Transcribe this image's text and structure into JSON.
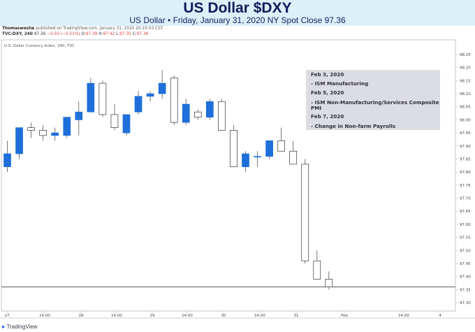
{
  "header": {
    "title": "US Dollar $DXY",
    "subtitle": "US Dollar • Friday, January 31, 2020 NY Spot Close 97.36"
  },
  "meta": {
    "author": "Thomaswestw",
    "published": "published on TradingView.com, January 31, 2020 20:15:03 CST"
  },
  "ohlc": {
    "symbol": "TVC:DXY, 240",
    "last": "97.36",
    "change": "−0.50 (−0.51%)",
    "o_label": "O:",
    "o": "97.39",
    "h_label": "H:",
    "h": "97.42",
    "l_label": "L:",
    "l": "97.35",
    "c_label": "C:",
    "c": "97.36"
  },
  "events": [
    "Feb 3, 2020",
    "- ISM Manufacturing",
    "Feb 5, 2020",
    "- ISM Non-Manufacturing/Services Composite",
    "PMI",
    "Feb 7, 2020",
    "- Change in Non-farm Payrolls"
  ],
  "branding": {
    "logo_text": "TradingView"
  },
  "colors": {
    "up": "#1e6fd9",
    "down": "#ffffff",
    "wick": "#555555",
    "header_bg": "#dcf0fa",
    "title": "#0d1e5b",
    "legend_bg": "#dcdde2"
  },
  "chart_data": {
    "type": "candlestick",
    "title": "U.S. Dollar Currency Index, 240, TVC",
    "x_ticks": [
      "27",
      "14:00",
      "28",
      "14:00",
      "29",
      "14:00",
      "30",
      "14:00",
      "31",
      "Feb",
      "14:00",
      "4"
    ],
    "y_ticks": [
      97.3,
      97.35,
      97.4,
      97.45,
      97.5,
      97.55,
      97.6,
      97.65,
      97.7,
      97.75,
      97.8,
      97.85,
      97.9,
      97.95,
      98.0,
      98.05,
      98.1,
      98.15,
      98.2,
      98.25
    ],
    "ylim": [
      97.275,
      98.275
    ],
    "close_line": 97.36,
    "candles": [
      {
        "o": 97.82,
        "h": 97.92,
        "l": 97.8,
        "c": 97.87
      },
      {
        "o": 97.87,
        "h": 97.97,
        "l": 97.85,
        "c": 97.97
      },
      {
        "o": 97.97,
        "h": 97.99,
        "l": 97.93,
        "c": 97.96
      },
      {
        "o": 97.96,
        "h": 97.98,
        "l": 97.92,
        "c": 97.94
      },
      {
        "o": 97.94,
        "h": 97.97,
        "l": 97.92,
        "c": 97.95
      },
      {
        "o": 97.94,
        "h": 98.01,
        "l": 97.93,
        "c": 98.01
      },
      {
        "o": 98.0,
        "h": 98.07,
        "l": 97.94,
        "c": 98.03
      },
      {
        "o": 98.03,
        "h": 98.16,
        "l": 98.03,
        "c": 98.14
      },
      {
        "o": 98.14,
        "h": 98.15,
        "l": 98.01,
        "c": 98.02
      },
      {
        "o": 98.02,
        "h": 98.06,
        "l": 97.96,
        "c": 97.97
      },
      {
        "o": 97.95,
        "h": 98.02,
        "l": 97.94,
        "c": 98.02
      },
      {
        "o": 98.03,
        "h": 98.11,
        "l": 98.02,
        "c": 98.09
      },
      {
        "o": 98.09,
        "h": 98.11,
        "l": 98.07,
        "c": 98.1
      },
      {
        "o": 98.1,
        "h": 98.19,
        "l": 98.08,
        "c": 98.14
      },
      {
        "o": 98.16,
        "h": 98.17,
        "l": 97.98,
        "c": 97.99
      },
      {
        "o": 97.99,
        "h": 98.08,
        "l": 97.98,
        "c": 98.06
      },
      {
        "o": 98.03,
        "h": 98.04,
        "l": 98.0,
        "c": 98.01
      },
      {
        "o": 98.01,
        "h": 98.08,
        "l": 98.0,
        "c": 98.07
      },
      {
        "o": 98.07,
        "h": 98.08,
        "l": 97.96,
        "c": 97.96
      },
      {
        "o": 97.96,
        "h": 97.98,
        "l": 97.82,
        "c": 97.82
      },
      {
        "o": 97.82,
        "h": 97.88,
        "l": 97.8,
        "c": 97.87
      },
      {
        "o": 97.86,
        "h": 97.88,
        "l": 97.82,
        "c": 97.86
      },
      {
        "o": 97.86,
        "h": 97.92,
        "l": 97.85,
        "c": 97.92
      },
      {
        "o": 97.92,
        "h": 97.97,
        "l": 97.88,
        "c": 97.88
      },
      {
        "o": 97.88,
        "h": 97.92,
        "l": 97.83,
        "c": 97.83
      },
      {
        "o": 97.83,
        "h": 97.85,
        "l": 97.45,
        "c": 97.46
      },
      {
        "o": 97.46,
        "h": 97.5,
        "l": 97.39,
        "c": 97.39
      },
      {
        "o": 97.39,
        "h": 97.42,
        "l": 97.35,
        "c": 97.36
      }
    ]
  }
}
